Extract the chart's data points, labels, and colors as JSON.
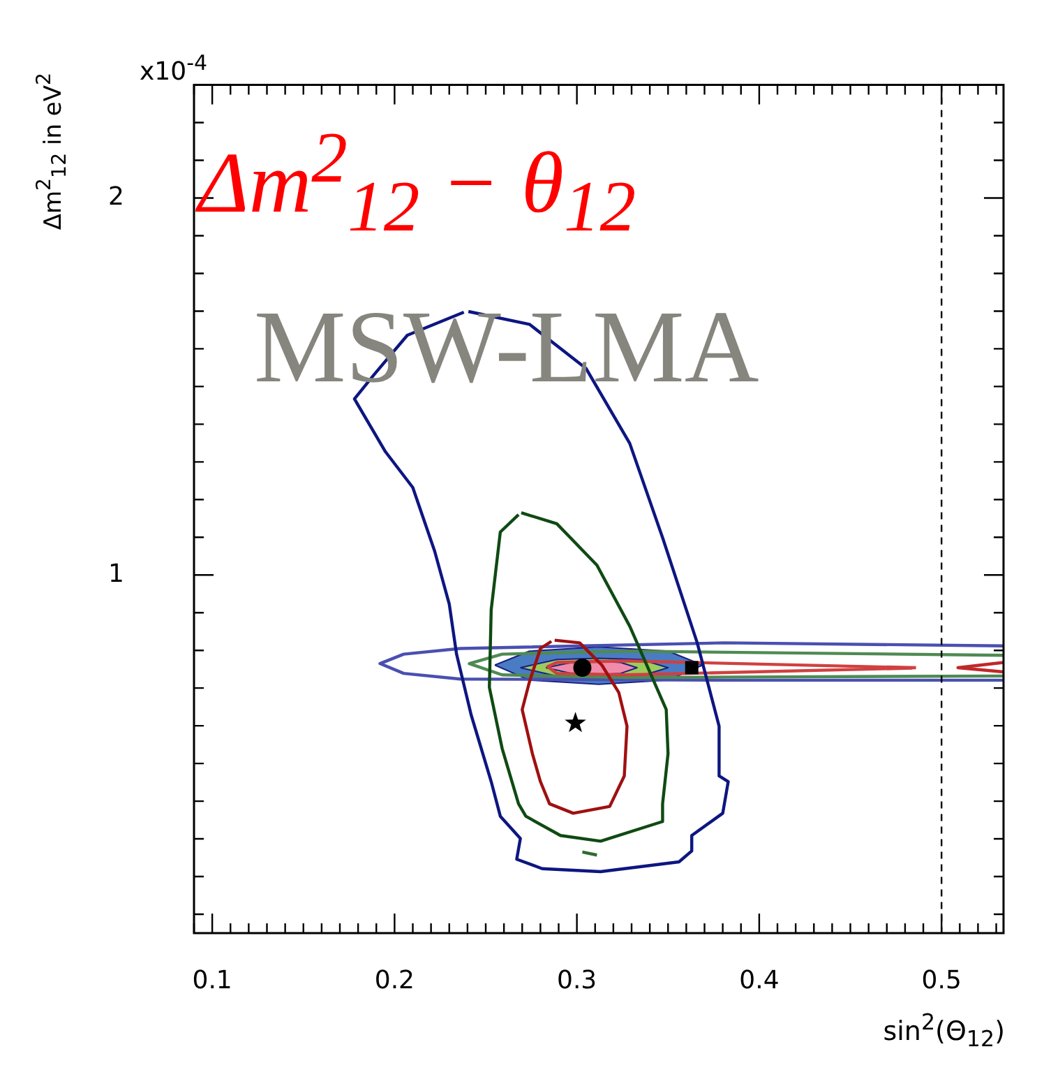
{
  "chart_data": {
    "type": "line",
    "title": "Δm$^{2}$$_{12}$ − θ$_{12}$",
    "xlabel": "sin$^{2}$(Θ$_{12}$)",
    "ylabel": "Δm$^{2}$$_{12}$ in eV$^{2}$",
    "annotations": [
      "x10$^{-4}$",
      "MSW-LMA"
    ],
    "xlim": [
      0.09,
      0.534
    ],
    "ylim": [
      0.05,
      2.3
    ],
    "xticks": [
      {
        "value": 0.09,
        "label": null
      },
      0.1,
      {
        "value": 0.11,
        "label": null
      },
      {
        "value": 0.12,
        "label": null
      },
      {
        "value": 0.13,
        "label": null
      },
      {
        "value": 0.14,
        "label": null
      },
      {
        "value": 0.15,
        "label": null
      },
      {
        "value": 0.16,
        "label": null
      },
      {
        "value": 0.17,
        "label": null
      },
      {
        "value": 0.18,
        "label": null
      },
      {
        "value": 0.19,
        "label": null
      },
      0.2,
      {
        "value": 0.21,
        "label": null
      },
      {
        "value": 0.22,
        "label": null
      },
      {
        "value": 0.23,
        "label": null
      },
      {
        "value": 0.24,
        "label": null
      },
      {
        "value": 0.25,
        "label": null
      },
      {
        "value": 0.26,
        "label": null
      },
      {
        "value": 0.27,
        "label": null
      },
      {
        "value": 0.28,
        "label": null
      },
      {
        "value": 0.29,
        "label": null
      },
      0.3,
      {
        "value": 0.31,
        "label": null
      },
      {
        "value": 0.32,
        "label": null
      },
      {
        "value": 0.33,
        "label": null
      },
      {
        "value": 0.34,
        "label": null
      },
      {
        "value": 0.35,
        "label": null
      },
      {
        "value": 0.36,
        "label": null
      },
      {
        "value": 0.37,
        "label": null
      },
      {
        "value": 0.38,
        "label": null
      },
      {
        "value": 0.39,
        "label": null
      },
      0.4,
      {
        "value": 0.41,
        "label": null
      },
      {
        "value": 0.42,
        "label": null
      },
      {
        "value": 0.43,
        "label": null
      },
      {
        "value": 0.44,
        "label": null
      },
      {
        "value": 0.45,
        "label": null
      },
      {
        "value": 0.46,
        "label": null
      },
      {
        "value": 0.47,
        "label": null
      },
      {
        "value": 0.48,
        "label": null
      },
      {
        "value": 0.49,
        "label": null
      },
      0.5,
      {
        "value": 0.51,
        "label": null
      },
      {
        "value": 0.52,
        "label": null
      },
      {
        "value": 0.53,
        "label": null
      }
    ],
    "yticks": [
      {
        "value": 0.1,
        "label": null
      },
      {
        "value": 0.2,
        "label": null
      },
      {
        "value": 0.3,
        "label": null
      },
      {
        "value": 0.4,
        "label": null
      },
      {
        "value": 0.5,
        "label": null
      },
      {
        "value": 0.6,
        "label": null
      },
      {
        "value": 0.7,
        "label": null
      },
      {
        "value": 0.8,
        "label": null
      },
      {
        "value": 0.9,
        "label": null
      },
      1,
      {
        "value": 1.1,
        "label": null
      },
      {
        "value": 1.2,
        "label": null
      },
      {
        "value": 1.3,
        "label": null
      },
      {
        "value": 1.4,
        "label": null
      },
      {
        "value": 1.5,
        "label": null
      },
      {
        "value": 1.6,
        "label": null
      },
      {
        "value": 1.7,
        "label": null
      },
      {
        "value": 1.8,
        "label": null
      },
      {
        "value": 1.9,
        "label": null
      },
      2,
      {
        "value": 2.1,
        "label": null
      },
      {
        "value": 2.2,
        "label": null
      }
    ],
    "ref_lines": [
      {
        "axis": "x",
        "value": 0.5,
        "color": "#000000",
        "line_style": "dashed"
      }
    ],
    "series": [
      {
        "type": "area",
        "color": "#4a7cc4",
        "x": [
          0.255,
          0.274,
          0.312,
          0.35,
          0.369,
          0.35,
          0.312,
          0.274,
          0.255
        ],
        "values": [
          0.761,
          0.798,
          0.809,
          0.798,
          0.761,
          0.721,
          0.71,
          0.721,
          0.761
        ]
      },
      {
        "type": "area",
        "color": "#9ccc5c",
        "x": [
          0.269,
          0.289,
          0.312,
          0.335,
          0.35,
          0.335,
          0.312,
          0.289,
          0.269
        ],
        "values": [
          0.754,
          0.776,
          0.779,
          0.776,
          0.754,
          0.732,
          0.728,
          0.732,
          0.754
        ]
      },
      {
        "type": "area",
        "color": "#f08cab",
        "x": [
          0.283,
          0.297,
          0.308,
          0.324,
          0.333,
          0.324,
          0.308,
          0.297,
          0.283
        ],
        "values": [
          0.754,
          0.768,
          0.772,
          0.768,
          0.754,
          0.739,
          0.735,
          0.739,
          0.754
        ]
      },
      {
        "type": "line",
        "color": "#4a50b0",
        "x": [
          0.534,
          0.381,
          0.236,
          0.205,
          0.192,
          0.205,
          0.236,
          0.381,
          0.534
        ],
        "values": [
          0.812,
          0.82,
          0.805,
          0.79,
          0.765,
          0.739,
          0.724,
          0.721,
          0.721
        ]
      },
      {
        "type": "line",
        "color": "#4f8a52",
        "x": [
          0.534,
          0.327,
          0.259,
          0.241,
          0.259,
          0.327,
          0.534
        ],
        "values": [
          0.787,
          0.798,
          0.79,
          0.765,
          0.735,
          0.728,
          0.732
        ]
      },
      {
        "type": "line",
        "color": "#d04040",
        "x": [
          0.486,
          0.327,
          0.289,
          0.284,
          0.289,
          0.327,
          0.484
        ],
        "values": [
          0.754,
          0.772,
          0.768,
          0.757,
          0.739,
          0.735,
          0.753
        ]
      },
      {
        "type": "line",
        "color": "#c02828",
        "x": [
          0.534,
          0.509,
          0.534
        ],
        "values": [
          0.768,
          0.754,
          0.743
        ]
      },
      {
        "type": "line",
        "color": "#0d1680",
        "x": [
          0.2405,
          0.274,
          0.305,
          0.329,
          0.347,
          0.366,
          0.378,
          0.378,
          0.383,
          0.38,
          0.363,
          0.363,
          0.356,
          0.313,
          0.281,
          0.267,
          0.269,
          0.258,
          0.253,
          0.242,
          0.234,
          0.23,
          0.222,
          0.21,
          0.195,
          0.178,
          0.189,
          0.207,
          0.238
        ],
        "values": [
          1.699,
          1.665,
          1.548,
          1.349,
          1.099,
          0.82,
          0.599,
          0.467,
          0.452,
          0.368,
          0.309,
          0.268,
          0.239,
          0.213,
          0.221,
          0.246,
          0.301,
          0.36,
          0.452,
          0.629,
          0.79,
          0.923,
          1.063,
          1.232,
          1.327,
          1.467,
          1.533,
          1.636,
          1.697
        ]
      },
      {
        "type": "line",
        "color": "#0f4a12",
        "x": [
          0.2695,
          0.289,
          0.311,
          0.329,
          0.349,
          0.35,
          0.347,
          0.347,
          0.313,
          0.291,
          0.272,
          0.268,
          0.259,
          0.252,
          0.253,
          0.258,
          0.268
        ],
        "values": [
          1.165,
          1.136,
          1.026,
          0.864,
          0.643,
          0.526,
          0.393,
          0.346,
          0.294,
          0.309,
          0.36,
          0.393,
          0.54,
          0.702,
          0.908,
          1.114,
          1.16
        ]
      },
      {
        "type": "line",
        "color": "#2e6a30",
        "x": [
          0.303,
          0.311
        ],
        "values": [
          0.265,
          0.257
        ]
      },
      {
        "type": "line",
        "color": "#a01010",
        "x": [
          0.2878,
          0.3015,
          0.3137,
          0.323,
          0.3275,
          0.326,
          0.318,
          0.298,
          0.285,
          0.28,
          0.2756,
          0.27,
          0.274,
          0.28,
          0.286
        ],
        "values": [
          0.827,
          0.82,
          0.761,
          0.688,
          0.599,
          0.467,
          0.386,
          0.368,
          0.393,
          0.452,
          0.526,
          0.643,
          0.717,
          0.805,
          0.824
        ]
      },
      {
        "type": "scatter",
        "color": "#000000",
        "marker": "circle",
        "x": [
          0.303
        ],
        "values": [
          0.754
        ]
      },
      {
        "type": "scatter",
        "color": "#000000",
        "marker": "square",
        "x": [
          0.363
        ],
        "values": [
          0.754
        ]
      },
      {
        "type": "scatter",
        "color": "#000000",
        "marker": "star",
        "x": [
          0.2992
        ],
        "values": [
          0.607
        ]
      }
    ]
  }
}
